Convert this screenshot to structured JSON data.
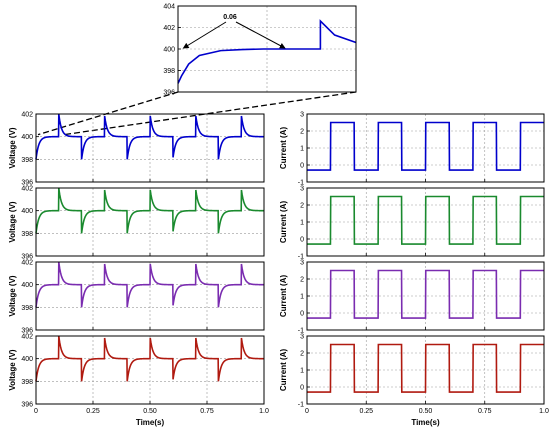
{
  "chart_data": [
    {
      "id": "zoom-inset",
      "type": "line",
      "x": [
        0.0,
        0.01,
        0.03,
        0.06,
        0.12,
        0.18,
        0.24,
        0.3,
        0.36,
        0.4,
        0.4,
        0.44,
        0.5
      ],
      "y": [
        396.8,
        397.5,
        398.6,
        399.4,
        399.85,
        399.95,
        400.0,
        400.0,
        400.0,
        400.0,
        402.6,
        401.3,
        400.6
      ],
      "ylim": [
        396,
        404
      ],
      "yticks": [
        396,
        398,
        400,
        402,
        404
      ],
      "annotation": "0.06",
      "grid": true,
      "color": "#0000cc"
    },
    {
      "id": "voltage-1",
      "type": "line",
      "series_kind": "voltage",
      "color": "#0000cc",
      "ylabel": "Voltage (V)",
      "ylim": [
        396,
        402
      ],
      "yticks": [
        396,
        398,
        400,
        402
      ],
      "grid": true
    },
    {
      "id": "voltage-2",
      "type": "line",
      "series_kind": "voltage",
      "color": "#1a8a2e",
      "ylabel": "Voltage (V)",
      "ylim": [
        396,
        402
      ],
      "yticks": [
        396,
        398,
        400,
        402
      ],
      "grid": true
    },
    {
      "id": "voltage-3",
      "type": "line",
      "series_kind": "voltage",
      "color": "#7a2cb0",
      "ylabel": "Voltage (V)",
      "ylim": [
        396,
        402
      ],
      "yticks": [
        396,
        398,
        400,
        402
      ],
      "grid": true
    },
    {
      "id": "voltage-4",
      "type": "line",
      "series_kind": "voltage",
      "color": "#b01a10",
      "ylabel": "Voltage (V)",
      "ylim": [
        396,
        402
      ],
      "yticks": [
        396,
        398,
        400,
        402
      ],
      "xticks": [
        "0",
        "0.25",
        "0.50",
        "0.75",
        "1.0"
      ],
      "xlabel": "Time(s)",
      "grid": true
    },
    {
      "id": "current-1",
      "type": "line",
      "series_kind": "current",
      "color": "#0000cc",
      "ylabel": "Current (A)",
      "ylim": [
        -1,
        3
      ],
      "yticks": [
        -1,
        0,
        1,
        2,
        3
      ],
      "high": 2.5,
      "low": -0.3,
      "grid": true
    },
    {
      "id": "current-2",
      "type": "line",
      "series_kind": "current",
      "color": "#1a8a2e",
      "ylabel": "Current (A)",
      "ylim": [
        -1,
        3
      ],
      "yticks": [
        -1,
        0,
        1,
        2,
        3
      ],
      "high": 2.5,
      "low": -0.3,
      "grid": true
    },
    {
      "id": "current-3",
      "type": "line",
      "series_kind": "current",
      "color": "#7a2cb0",
      "ylabel": "Current (A)",
      "ylim": [
        -1,
        3
      ],
      "yticks": [
        -1,
        0,
        1,
        2,
        3
      ],
      "high": 2.5,
      "low": -0.3,
      "grid": true
    },
    {
      "id": "current-4",
      "type": "line",
      "series_kind": "current",
      "color": "#b01a10",
      "ylabel": "Current (A)",
      "ylim": [
        -1,
        3
      ],
      "yticks": [
        -1,
        0,
        1,
        2,
        3
      ],
      "high": 2.5,
      "low": -0.3,
      "xticks": [
        "0",
        "0.25",
        "0.50",
        "0.75",
        "1.0"
      ],
      "xlabel": "Time(s)",
      "grid": true
    }
  ],
  "signal": {
    "period_s": 0.2,
    "duty": 0.5,
    "xlim": [
      0,
      1.0
    ],
    "voltage_nominal": 400,
    "voltage_peak": 402,
    "voltage_trough": 398
  }
}
